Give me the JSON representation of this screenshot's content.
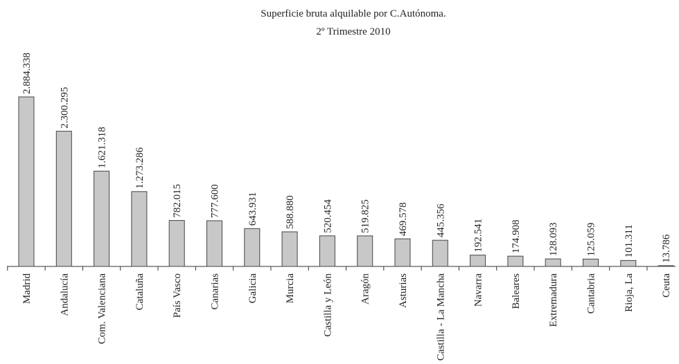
{
  "chart_data": {
    "type": "bar",
    "title": "Superficie bruta alquilable por C.Autónoma.",
    "subtitle": "2º Trimestre 2010",
    "categories": [
      "Madrid",
      "Andalucía",
      "Com. Valenciana",
      "Cataluña",
      "País Vasco",
      "Canarias",
      "Galicia",
      "Murcia",
      "Castilla y León",
      "Aragón",
      "Asturias",
      "Castilla - La Mancha",
      "Navarra",
      "Baleares",
      "Extremadura",
      "Cantabria",
      "Rioja, La",
      "Ceuta"
    ],
    "values": [
      2884338,
      2300295,
      1621318,
      1273286,
      782015,
      777600,
      643931,
      588880,
      520454,
      519825,
      469578,
      445356,
      192541,
      174908,
      128093,
      125059,
      101311,
      13786
    ],
    "value_labels": [
      "2.884.338",
      "2.300.295",
      "1.621.318",
      "1.273.286",
      "782.015",
      "777.600",
      "643.931",
      "588.880",
      "520.454",
      "519.825",
      "469.578",
      "445.356",
      "192.541",
      "174.908",
      "128.093",
      "125.059",
      "101.311",
      "13.786"
    ],
    "color": "#c8c8c8"
  }
}
